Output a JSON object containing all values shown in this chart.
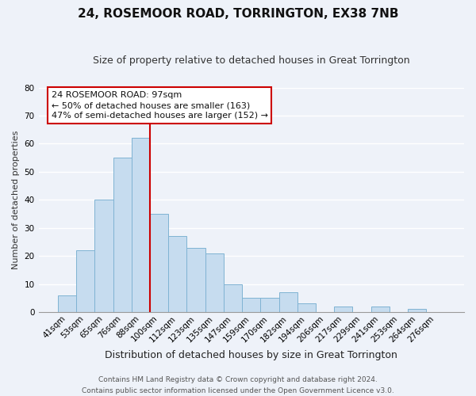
{
  "title": "24, ROSEMOOR ROAD, TORRINGTON, EX38 7NB",
  "subtitle": "Size of property relative to detached houses in Great Torrington",
  "xlabel": "Distribution of detached houses by size in Great Torrington",
  "ylabel": "Number of detached properties",
  "categories": [
    "41sqm",
    "53sqm",
    "65sqm",
    "76sqm",
    "88sqm",
    "100sqm",
    "112sqm",
    "123sqm",
    "135sqm",
    "147sqm",
    "159sqm",
    "170sqm",
    "182sqm",
    "194sqm",
    "206sqm",
    "217sqm",
    "229sqm",
    "241sqm",
    "253sqm",
    "264sqm",
    "276sqm"
  ],
  "values": [
    6,
    22,
    40,
    55,
    62,
    35,
    27,
    23,
    21,
    10,
    5,
    5,
    7,
    3,
    0,
    2,
    0,
    2,
    0,
    1,
    0
  ],
  "bar_color": "#c6dcef",
  "bar_edge_color": "#7fb3d3",
  "vline_color": "#cc0000",
  "annotation_line1": "24 ROSEMOOR ROAD: 97sqm",
  "annotation_line2": "← 50% of detached houses are smaller (163)",
  "annotation_line3": "47% of semi-detached houses are larger (152) →",
  "annotation_box_color": "#ffffff",
  "annotation_box_edge": "#cc0000",
  "ylim": [
    0,
    80
  ],
  "yticks": [
    0,
    10,
    20,
    30,
    40,
    50,
    60,
    70,
    80
  ],
  "footer_line1": "Contains HM Land Registry data © Crown copyright and database right 2024.",
  "footer_line2": "Contains public sector information licensed under the Open Government Licence v3.0.",
  "background_color": "#eef2f9",
  "grid_color": "#ffffff",
  "title_fontsize": 11,
  "subtitle_fontsize": 9,
  "xlabel_fontsize": 9,
  "ylabel_fontsize": 8,
  "tick_fontsize": 7.5,
  "annotation_fontsize": 8,
  "footer_fontsize": 6.5
}
